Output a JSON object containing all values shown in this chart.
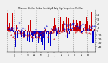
{
  "bg_color": "#f0f0f0",
  "plot_bg_color": "#f0f0f0",
  "bar_color_pos": "#cc0000",
  "bar_color_neg": "#0000cc",
  "grid_color": "#999999",
  "zero_line_color": "#000000",
  "ylim": [
    -55,
    55
  ],
  "ytick_vals": [
    40,
    30,
    20,
    10,
    0,
    -10,
    -20,
    -30,
    -40
  ],
  "ytick_labels": [
    "40",
    "30",
    "20",
    "10",
    "0",
    "-10",
    "-20",
    "-30",
    "-40"
  ],
  "n_points": 365,
  "seed": 7,
  "seasonal_amplitude": 20,
  "noise_std": 20
}
